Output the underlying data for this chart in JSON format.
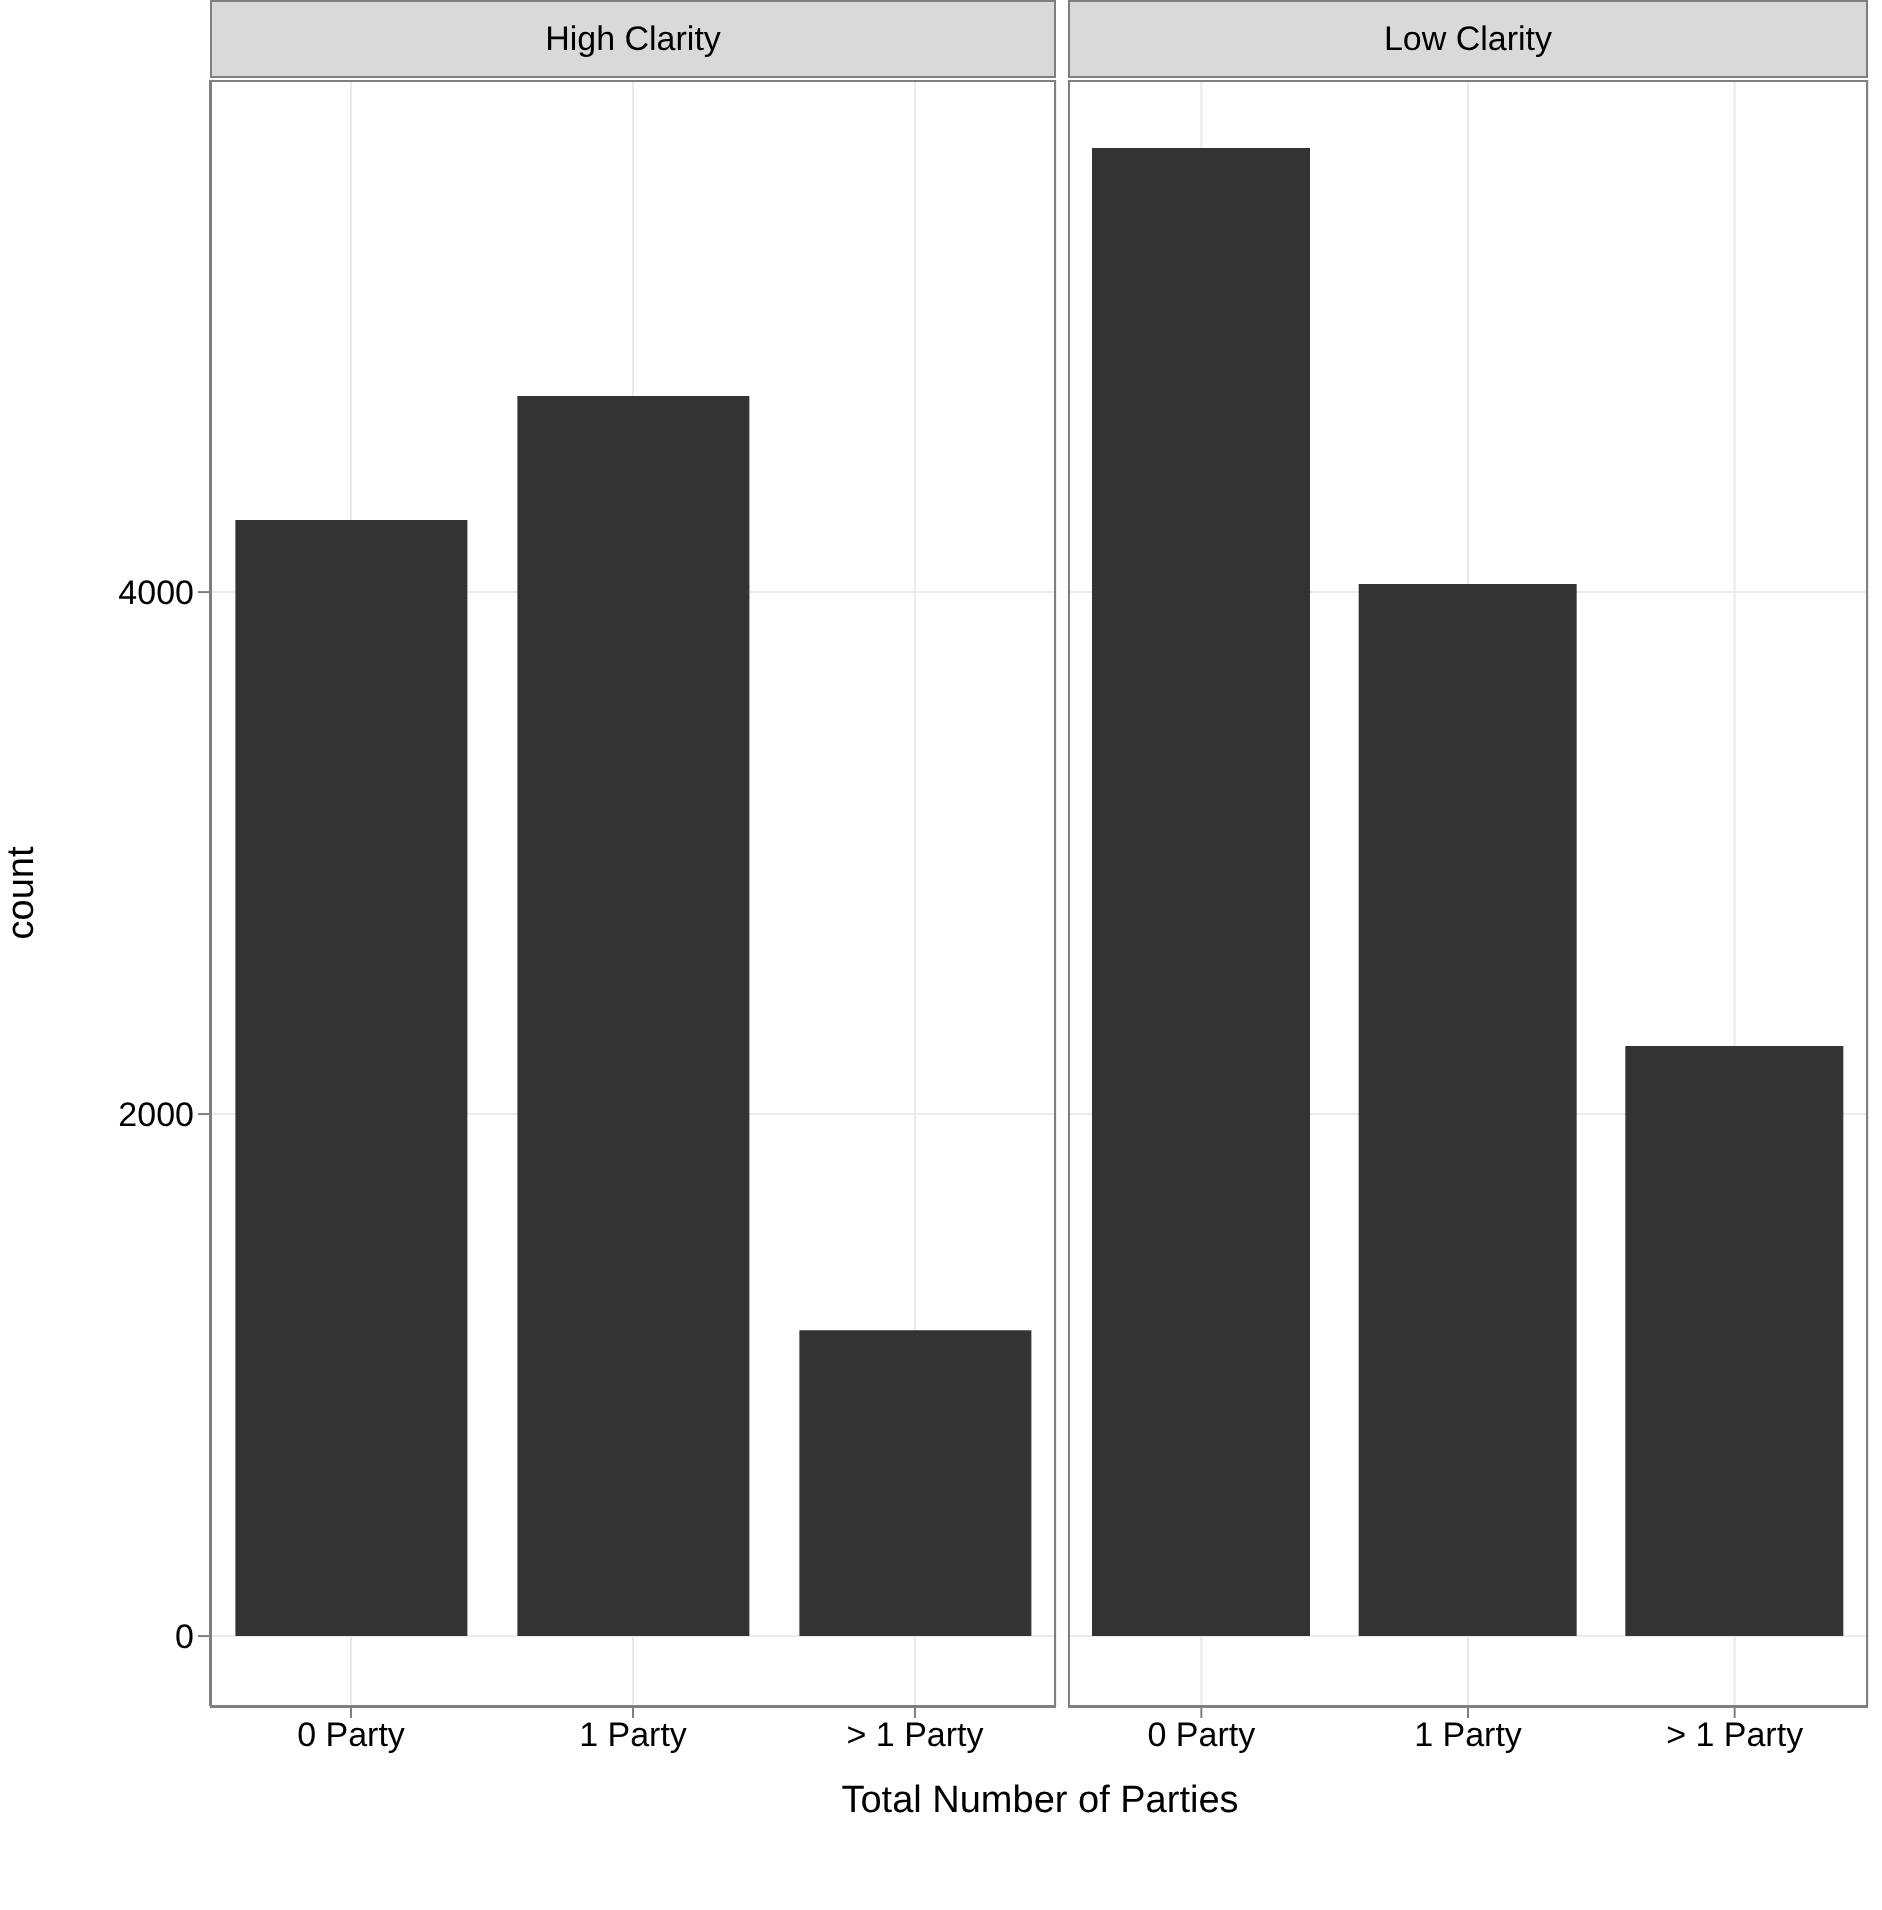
{
  "chart_data": [
    {
      "type": "bar",
      "title": "High Clarity",
      "xlabel": "Total Number of Parties",
      "ylabel": "count",
      "categories": [
        "0 Party",
        "1 Party",
        "> 1 Party"
      ],
      "values": [
        4276,
        4751,
        1172
      ],
      "color": "#333333",
      "ylim": [
        -268,
        5962
      ],
      "yticks": [
        0,
        2000,
        4000
      ],
      "grid": true
    },
    {
      "type": "bar",
      "title": "Low Clarity",
      "categories": [
        "0 Party",
        "1 Party",
        "> 1 Party"
      ],
      "values": [
        5701,
        4031,
        2261
      ],
      "color": "#333333",
      "ylim": [
        -268,
        5962
      ],
      "yticks": [
        0,
        2000,
        4000
      ],
      "grid": true,
      "tick_labels": "x"
    }
  ]
}
